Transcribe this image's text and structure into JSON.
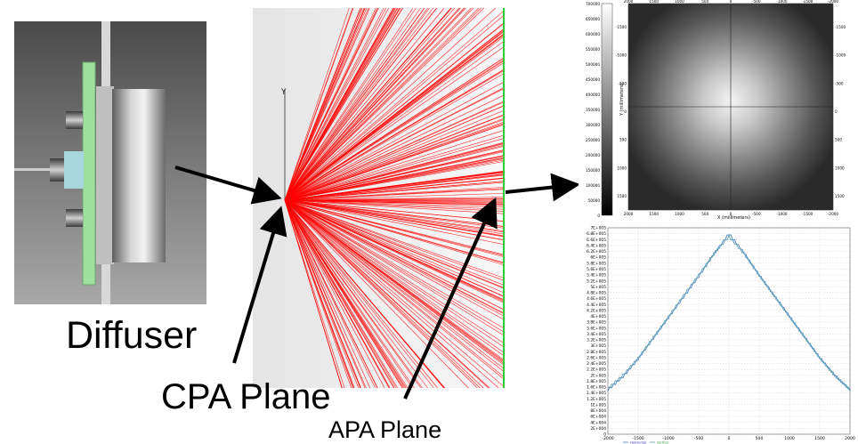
{
  "labels": {
    "diffuser": "Diffuser",
    "cpa_plane": "CPA Plane",
    "apa_plane": "APA Plane"
  },
  "raytrace": {
    "y_axis_label": "Y",
    "ray_color": "#ff0000",
    "plane_color": "#33cc33",
    "ray_count": 260
  },
  "heatmap": {
    "ylabel": "Y (millimeters)",
    "xlabel": "X (millimeters)",
    "colorbar_ticks": [
      "700000",
      "650000",
      "600000",
      "550000",
      "500000",
      "450000",
      "400000",
      "350000",
      "300000",
      "250000",
      "200000",
      "150000",
      "100000",
      "50000",
      "0"
    ],
    "x_ticks": [
      "2000",
      "1500",
      "1000",
      "500",
      "0",
      "-500",
      "-1000",
      "-1500",
      "-2000"
    ],
    "y_ticks": [
      "-1500",
      "-1000",
      "-500",
      "0",
      "500",
      "1000",
      "1500"
    ]
  },
  "chart_data": {
    "type": "line",
    "title": "",
    "xlabel": "",
    "ylabel": "",
    "xlim": [
      -2000,
      2000
    ],
    "ylim": [
      0,
      700000.0
    ],
    "x_ticks": [
      "-2000",
      "-1500",
      "-1000",
      "-500",
      "0",
      "500",
      "1000",
      "1500",
      "2000"
    ],
    "y_ticks": [
      "7E+005",
      "6.8E+005",
      "6.6E+005",
      "6.4E+005",
      "6.2E+005",
      "6E+005",
      "5.8E+005",
      "5.6E+005",
      "5.4E+005",
      "5.2E+005",
      "5E+005",
      "4.8E+005",
      "4.6E+005",
      "4.4E+005",
      "4.2E+005",
      "4E+005",
      "3.8E+005",
      "3.6E+005",
      "3.4E+005",
      "3.2E+005",
      "3E+005",
      "2.8E+005",
      "2.6E+005",
      "2.4E+005",
      "2.2E+005",
      "2E+005",
      "1.8E+005",
      "1.6E+005",
      "1.4E+005",
      "1.2E+005",
      "1E+005",
      "8E+004",
      "6E+004",
      "4E+004",
      "2E+004",
      "0"
    ],
    "series": [
      {
        "name": "Horizontal",
        "color": "#4a7fc0",
        "x": [
          -2000,
          -1750,
          -1500,
          -1250,
          -1000,
          -750,
          -500,
          -250,
          0,
          250,
          500,
          750,
          1000,
          1250,
          1500,
          1750,
          2000
        ],
        "y": [
          150000,
          195000,
          255000,
          325000,
          395000,
          465000,
          535000,
          610000,
          680000,
          615000,
          540000,
          470000,
          400000,
          330000,
          260000,
          200000,
          150000
        ]
      },
      {
        "name": "Vertical",
        "color": "#5aa0b4",
        "x": [
          -2000,
          -1750,
          -1500,
          -1250,
          -1000,
          -750,
          -500,
          -250,
          0,
          250,
          500,
          750,
          1000,
          1250,
          1500,
          1750,
          2000
        ],
        "y": [
          155000,
          200000,
          258000,
          328000,
          398000,
          470000,
          540000,
          612000,
          670000,
          612000,
          538000,
          468000,
          398000,
          328000,
          258000,
          198000,
          152000
        ]
      }
    ]
  }
}
